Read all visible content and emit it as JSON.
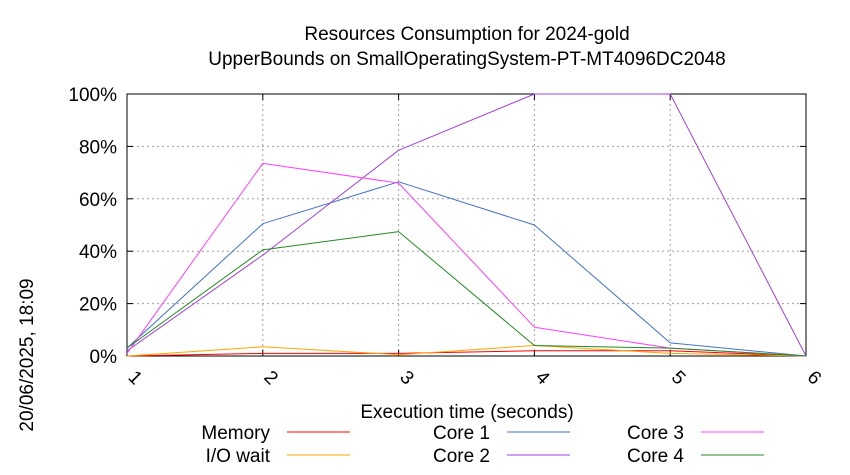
{
  "chart_data": {
    "type": "line",
    "title": "Resources Consumption for 2024-gold",
    "subtitle": "UpperBounds on SmallOperatingSystem-PT-MT4096DC2048",
    "xlabel": "Execution time (seconds)",
    "ylabel": "",
    "side_label": "20/06/2025, 18:09",
    "x": [
      1,
      2,
      3,
      4,
      5,
      6
    ],
    "xlim": [
      1,
      6
    ],
    "ylim": [
      0,
      100
    ],
    "x_tick_labels": [
      "1",
      "2",
      "3",
      "4",
      "5",
      "6"
    ],
    "y_tick_labels": [
      "0%",
      "20%",
      "40%",
      "60%",
      "80%",
      "100%"
    ],
    "grid": true,
    "legend_position": "bottom",
    "series": [
      {
        "name": "Memory",
        "color": "#ff0000",
        "values": [
          0,
          1,
          1,
          2,
          2,
          0
        ]
      },
      {
        "name": "I/O wait",
        "color": "#ffa500",
        "values": [
          0,
          3.5,
          0.5,
          4,
          1,
          0
        ]
      },
      {
        "name": "Core 1",
        "color": "#4472c4",
        "values": [
          3,
          50.5,
          66.5,
          50,
          5,
          0
        ]
      },
      {
        "name": "Core 2",
        "color": "#a040e0",
        "values": [
          2,
          38.5,
          78.5,
          100,
          100,
          0
        ]
      },
      {
        "name": "Core 3",
        "color": "#ff40ff",
        "values": [
          1,
          73.5,
          66,
          11,
          3,
          0
        ]
      },
      {
        "name": "Core 4",
        "color": "#228b22",
        "values": [
          3,
          40.5,
          47.5,
          4,
          3,
          0
        ]
      }
    ]
  }
}
